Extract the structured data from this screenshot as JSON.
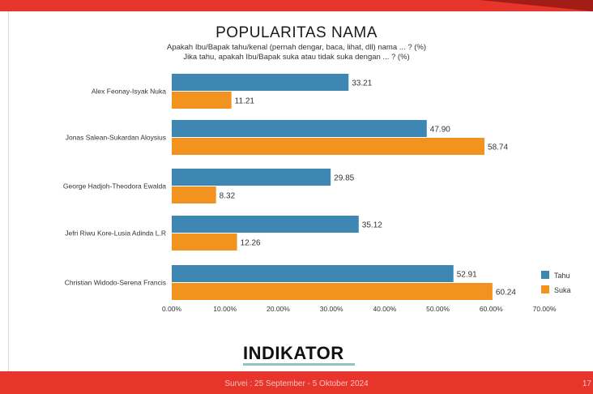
{
  "page": {
    "footer": "Survei : 25 September - 5 Oktober 2024",
    "page_number": "17",
    "logo_text": "INDIKATOR"
  },
  "colors": {
    "tahu": "#3f87b3",
    "suka": "#f3931f",
    "accent_red": "#e8352b"
  },
  "chart_data": {
    "type": "bar",
    "orientation": "horizontal",
    "title": "POPULARITAS NAMA",
    "subtitle": [
      "Apakah Ibu/Bapak tahu/kenal (pernah dengar, baca, lihat, dll) nama ... ? (%)",
      "Jika tahu, apakah Ibu/Bapak suka atau tidak suka dengan ... ? (%)"
    ],
    "categories": [
      "Alex Feonay-Isyak Nuka",
      "Jonas Salean-Sukardan Aloysius",
      "George Hadjoh-Theodora Ewalda",
      "Jefri Riwu Kore-Lusia Adinda L.R",
      "Christian Widodo-Serena Francis"
    ],
    "series": [
      {
        "name": "Tahu",
        "values": [
          33.21,
          47.9,
          29.85,
          35.12,
          52.91
        ],
        "labels": [
          "33.21",
          "47.90",
          "29.85",
          "35.12",
          "52.91"
        ]
      },
      {
        "name": "Suka",
        "values": [
          11.21,
          58.74,
          8.32,
          12.26,
          60.24
        ],
        "labels": [
          "11.21",
          "58.74",
          "8.32",
          "12.26",
          "60.24"
        ]
      }
    ],
    "xlim": [
      0,
      70
    ],
    "xticks": [
      "0.00%",
      "10.00%",
      "20.00%",
      "30.00%",
      "40.00%",
      "50.00%",
      "60.00%",
      "70.00%"
    ],
    "grid": false,
    "legend": "right"
  }
}
